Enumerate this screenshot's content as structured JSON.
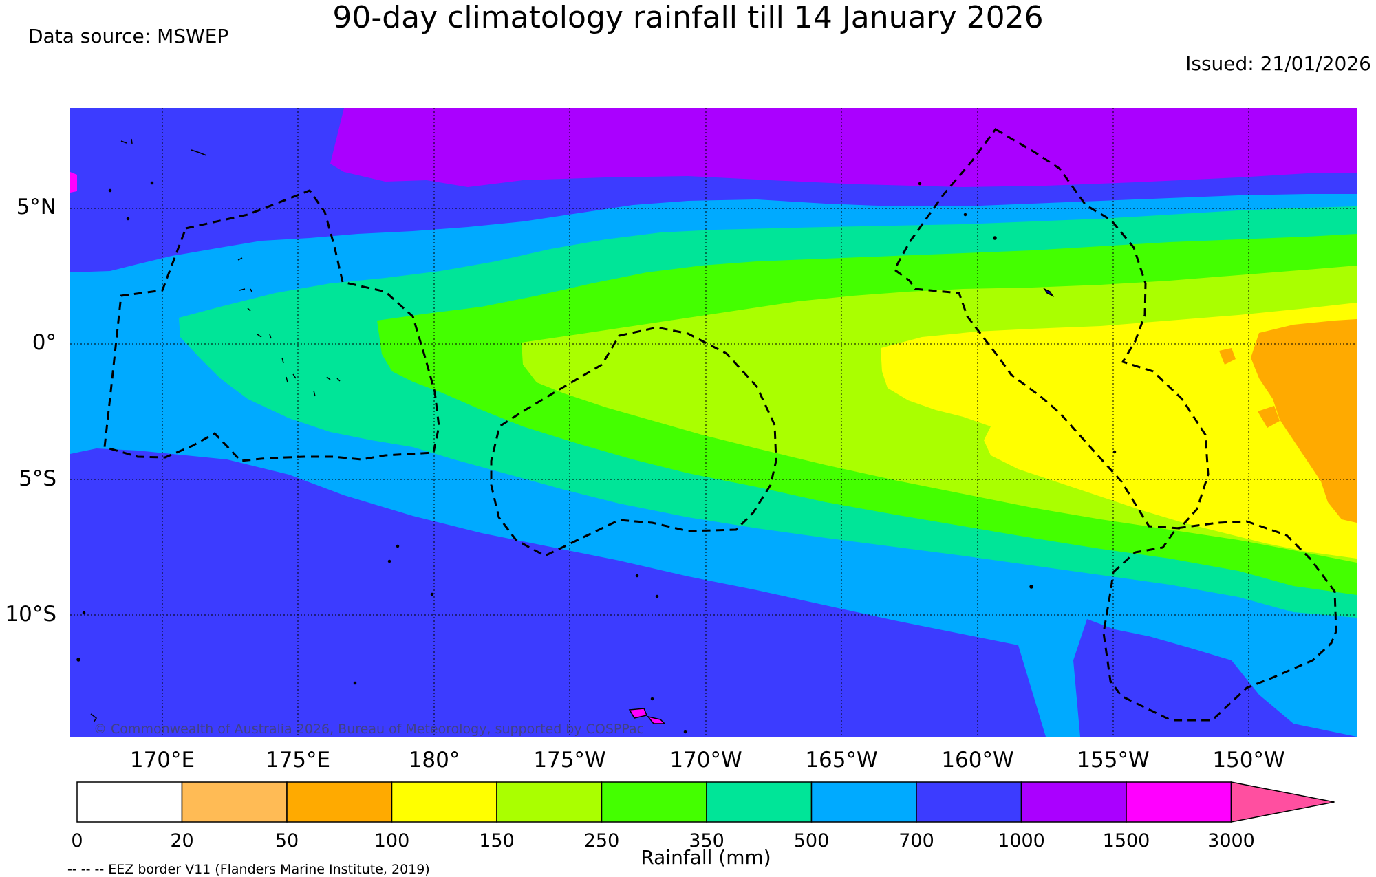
{
  "header": {
    "title": "90-day climatology rainfall till 14 January 2026",
    "data_source": "Data source: MSWEP",
    "issued": "Issued: 21/01/2026"
  },
  "map": {
    "lat_labels": [
      "5°N",
      "0°",
      "5°S",
      "10°S"
    ],
    "lon_labels": [
      "170°E",
      "175°E",
      "180°",
      "175°W",
      "170°W",
      "165°W",
      "160°W",
      "155°W",
      "150°W"
    ],
    "copyright": "© Commonwealth of Australia 2026, Bureau of Meteorology, supported by COSPPac"
  },
  "legend": {
    "title": "Rainfall (mm)",
    "ticks": [
      "0",
      "20",
      "50",
      "100",
      "150",
      "250",
      "350",
      "500",
      "700",
      "1000",
      "1500",
      "3000"
    ],
    "colors": [
      "#ffffff",
      "#ffbb55",
      "#ffaa00",
      "#ffff00",
      "#aaff00",
      "#44ff00",
      "#00e598",
      "#00aaff",
      "#3c3cff",
      "#aa00ff",
      "#ff00ff",
      "#ff4fa0"
    ]
  },
  "footer": {
    "eez_note": "-- -- -- EEZ border V11 (Flanders Marine Institute, 2019)"
  },
  "colors": {
    "c_1000_1500": "#aa00ff",
    "c_700_1000": "#3c3cff",
    "c_500_700": "#00aaff",
    "c_350_500": "#00e598",
    "c_250_350": "#44ff00",
    "c_150_250": "#aaff00",
    "c_100_150": "#ffff00",
    "c_50_100": "#ffaa00"
  }
}
